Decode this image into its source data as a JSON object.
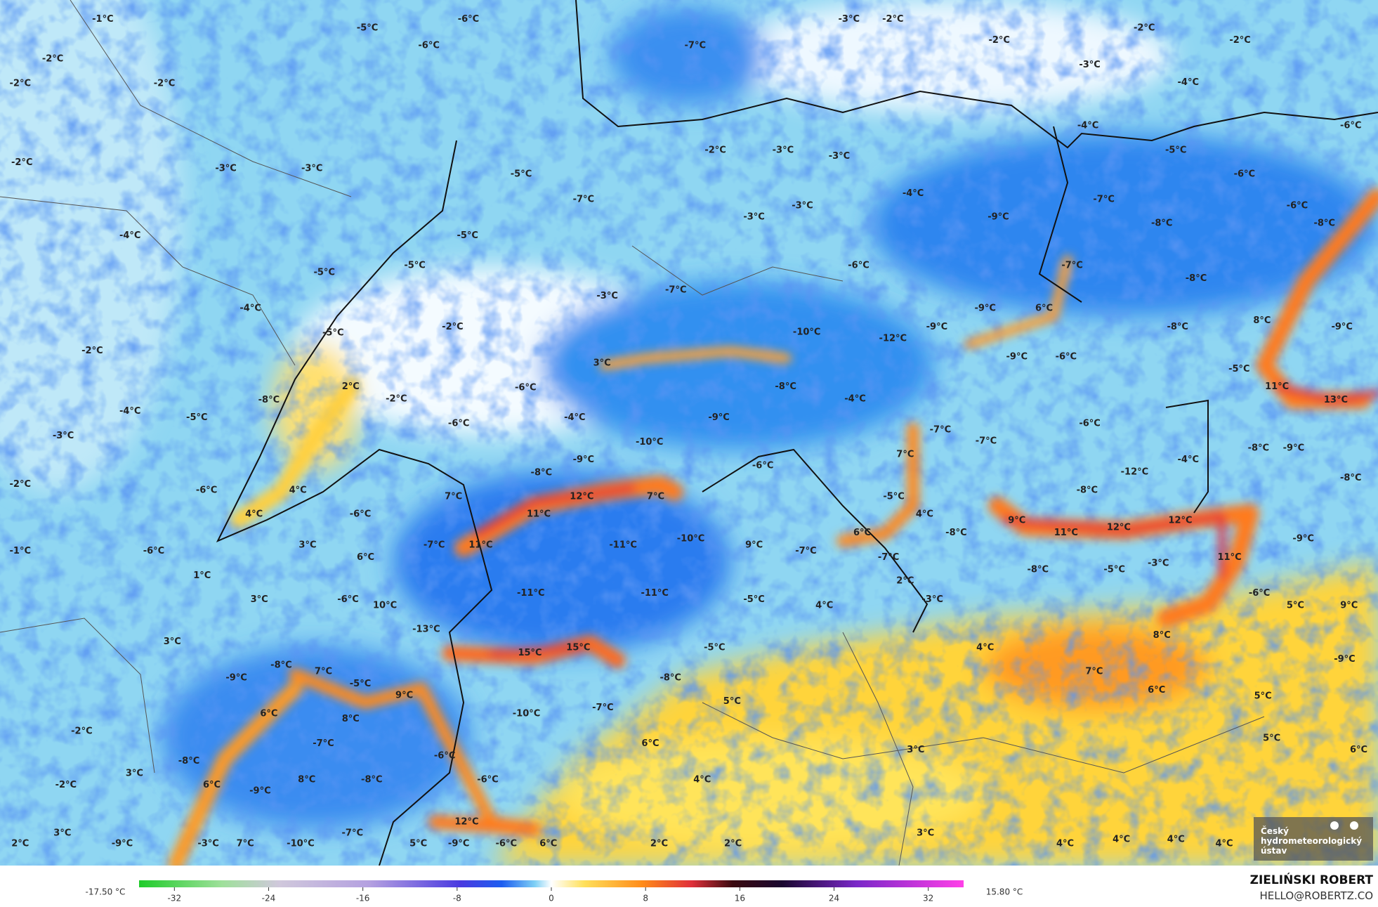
{
  "map": {
    "labels": [
      "-1°C",
      "-6°C",
      "-5°C",
      "-6°C",
      "-2°C",
      "-2°C",
      "-2°C",
      "-7°C",
      "-3°C",
      "-2°C",
      "-2°C",
      "-2°C",
      "-2°C",
      "-3°C",
      "-4°C",
      "-2°C",
      "-3°C",
      "-3°C",
      "-5°C",
      "-7°C",
      "-2°C",
      "-3°C",
      "-3°C",
      "-4°C",
      "-5°C",
      "-6°C",
      "-6°C",
      "-4°C",
      "-5°C",
      "-5°C",
      "-5°C",
      "-4°C",
      "-5°C",
      "-2°C",
      "-3°C",
      "-7°C",
      "-6°C",
      "-9°C",
      "-7°C",
      "-8°C",
      "-6°C",
      "-8°C",
      "-7°C",
      "-8°C",
      "-4°C",
      "-3°C",
      "-3°C",
      "-8°C",
      "-4°C",
      "-5°C",
      "-3°C",
      "-2°C",
      "2°C",
      "-2°C",
      "3°C",
      "-6°C",
      "-4°C",
      "-6°C",
      "-10°C",
      "-12°C",
      "-9°C",
      "-9°C",
      "6°C",
      "-8°C",
      "8°C",
      "-9°C",
      "-9°C",
      "-6°C",
      "-5°C",
      "11°C",
      "13°C",
      "-8°C",
      "-4°C",
      "-9°C",
      "-10°C",
      "-7°C",
      "-7°C",
      "-6°C",
      "-9°C",
      "-8°C",
      "-4°C",
      "-12°C",
      "-8°C",
      "-9°C",
      "-8°C",
      "-6°C",
      "7°C",
      "-2°C",
      "-6°C",
      "4°C",
      "4°C",
      "-6°C",
      "7°C",
      "12°C",
      "7°C",
      "11°C",
      "-5°C",
      "4°C",
      "-8°C",
      "-8°C",
      "6°C",
      "9°C",
      "11°C",
      "12°C",
      "12°C",
      "-9°C",
      "-1°C",
      "-6°C",
      "3°C",
      "6°C",
      "-7°C",
      "11°C",
      "-10°C",
      "-11°C",
      "9°C",
      "-7°C",
      "-7°C",
      "11°C",
      "-8°C",
      "-5°C",
      "-3°C",
      "2°C",
      "1°C",
      "3°C",
      "-6°C",
      "10°C",
      "-11°C",
      "-11°C",
      "-5°C",
      "4°C",
      "-3°C",
      "5°C",
      "9°C",
      "-6°C",
      "-13°C",
      "3°C",
      "-8°C",
      "-9°C",
      "7°C",
      "15°C",
      "15°C",
      "-5°C",
      "4°C",
      "8°C",
      "-9°C",
      "-5°C",
      "9°C",
      "-8°C",
      "7°C",
      "6°C",
      "5°C",
      "5°C",
      "-2°C",
      "6°C",
      "8°C",
      "-10°C",
      "-7°C",
      "-7°C",
      "6°C",
      "5°C",
      "-8°C",
      "-6°C",
      "3°C",
      "6°C",
      "3°C",
      "-2°C",
      "6°C",
      "8°C",
      "-8°C",
      "-6°C",
      "4°C",
      "-9°C",
      "3°C",
      "-7°C",
      "12°C",
      "3°C",
      "2°C",
      "-9°C",
      "-3°C",
      "7°C",
      "-10°C",
      "5°C",
      "-9°C",
      "-6°C",
      "6°C",
      "2°C",
      "2°C",
      "4°C",
      "4°C",
      "4°C",
      "4°C"
    ],
    "colorbar": {
      "min_label": "-17.50 °C",
      "max_label": "15.80 °C",
      "range": [
        -35,
        35
      ],
      "ticks": [
        -32,
        -24,
        -16,
        -8,
        0,
        8,
        16,
        24,
        32
      ]
    },
    "logo": {
      "line1": "Český",
      "line2": "hydrometeorologický",
      "line3": "ústav"
    },
    "author": {
      "name": "ZIELIŃSKI ROBERT",
      "contact": "HELLO@ROBERTZ.CO"
    }
  }
}
